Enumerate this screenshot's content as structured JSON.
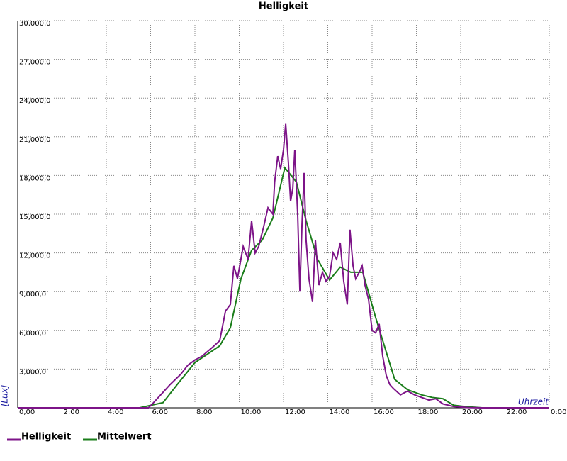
{
  "chart_data": {
    "type": "line",
    "title": "Helligkeit",
    "x_label": "Uhrzeit",
    "y_label": "[Lux]",
    "xlim": [
      0,
      24
    ],
    "ylim": [
      0,
      30000
    ],
    "grid": true,
    "xticks": [
      {
        "value": 0,
        "label": "0,00"
      },
      {
        "value": 2,
        "label": "2:00"
      },
      {
        "value": 4,
        "label": "4:00"
      },
      {
        "value": 6,
        "label": "6:00"
      },
      {
        "value": 8,
        "label": "8:00"
      },
      {
        "value": 10,
        "label": "10:00"
      },
      {
        "value": 12,
        "label": "12:00"
      },
      {
        "value": 14,
        "label": "14:00"
      },
      {
        "value": 16,
        "label": "16:00"
      },
      {
        "value": 18,
        "label": "18:00"
      },
      {
        "value": 20,
        "label": "20:00"
      },
      {
        "value": 22,
        "label": "22:00"
      },
      {
        "value": 24,
        "label": "0:00"
      }
    ],
    "yticks": [
      {
        "value": 3000,
        "label": "3,000,0"
      },
      {
        "value": 6000,
        "label": "6,000,0"
      },
      {
        "value": 9000,
        "label": "9,000,0"
      },
      {
        "value": 12000,
        "label": "12,000,0"
      },
      {
        "value": 15000,
        "label": "15,000,0"
      },
      {
        "value": 18000,
        "label": "18,000,0"
      },
      {
        "value": 21000,
        "label": "21,000,0"
      },
      {
        "value": 24000,
        "label": "24,000,0"
      },
      {
        "value": 27000,
        "label": "27,000,0"
      },
      {
        "value": 30000,
        "label": "30,000,0"
      }
    ],
    "series": [
      {
        "name": "Helligkeit",
        "color": "#7d1488",
        "x": [
          0,
          5.9,
          6.08,
          6.56,
          6.88,
          7.36,
          7.68,
          8.0,
          8.32,
          8.8,
          9.12,
          9.38,
          9.6,
          9.76,
          9.92,
          10.18,
          10.4,
          10.56,
          10.72,
          10.88,
          11.1,
          11.3,
          11.52,
          11.6,
          11.74,
          11.87,
          12.0,
          12.1,
          12.22,
          12.32,
          12.42,
          12.51,
          12.64,
          12.74,
          12.83,
          12.93,
          13.02,
          13.15,
          13.31,
          13.44,
          13.6,
          13.76,
          13.92,
          14.08,
          14.24,
          14.4,
          14.56,
          14.72,
          14.88,
          15.0,
          15.14,
          15.26,
          15.42,
          15.55,
          15.68,
          15.84,
          16.0,
          16.16,
          16.32,
          16.48,
          16.64,
          16.8,
          16.96,
          17.28,
          17.6,
          17.92,
          18.24,
          18.56,
          18.88,
          19.2,
          19.68,
          20.32,
          20.96,
          24
        ],
        "values": [
          0,
          0,
          300,
          1200,
          1800,
          2600,
          3300,
          3700,
          4000,
          4700,
          5200,
          7500,
          8000,
          11000,
          10000,
          12500,
          11500,
          14500,
          12000,
          12500,
          14000,
          15500,
          15000,
          17500,
          19500,
          18500,
          20000,
          22000,
          19000,
          16000,
          17000,
          20000,
          15000,
          9000,
          14000,
          18200,
          13000,
          10000,
          8200,
          13000,
          9500,
          10500,
          9800,
          10200,
          12000,
          11500,
          12800,
          9800,
          8000,
          13800,
          11000,
          10000,
          10500,
          11000,
          9500,
          8400,
          6000,
          5800,
          6500,
          4000,
          2500,
          1800,
          1500,
          1000,
          1300,
          1000,
          800,
          600,
          700,
          300,
          100,
          20,
          0,
          0
        ]
      },
      {
        "name": "Mittelwert",
        "color": "#1a7d1a",
        "x": [
          0,
          5.5,
          6.56,
          7.2,
          8.0,
          9.12,
          9.6,
          10.08,
          10.56,
          11.04,
          11.52,
          12.06,
          12.58,
          13.02,
          13.54,
          14.08,
          14.56,
          15.04,
          15.58,
          16.16,
          17.02,
          17.6,
          18.24,
          18.72,
          19.2,
          19.68,
          20.16,
          20.96,
          24
        ],
        "values": [
          0,
          0,
          400,
          1800,
          3500,
          4800,
          6200,
          10000,
          12200,
          13000,
          14700,
          18600,
          17500,
          14500,
          11500,
          9900,
          10900,
          10500,
          10500,
          7000,
          2200,
          1400,
          1000,
          800,
          700,
          200,
          100,
          0,
          0
        ]
      }
    ]
  }
}
